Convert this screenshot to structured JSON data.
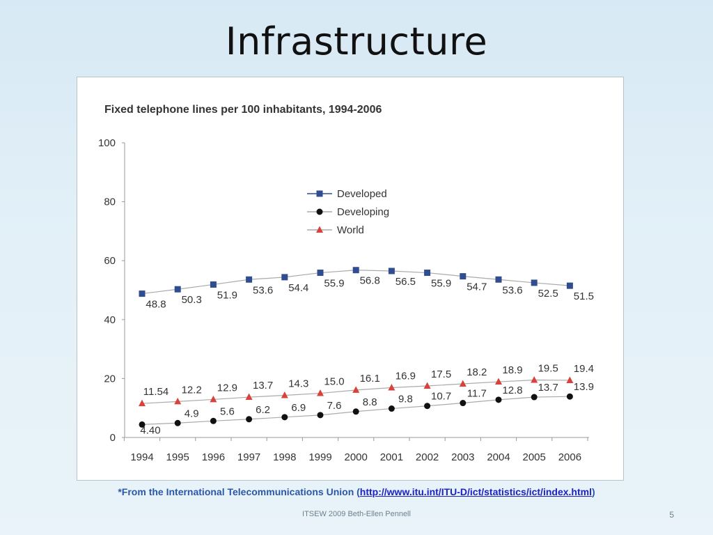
{
  "slide": {
    "title": "Infrastructure",
    "footnote_prefix": "*From the International Telecommunications Union (",
    "footnote_link": "http://www.itu.int/ITU-D/ict/statistics/ict/index.html",
    "footnote_suffix": ")",
    "footer": "ITSEW 2009 Beth-Ellen Pennell",
    "page_number": "5"
  },
  "chart_data": {
    "type": "line",
    "title": "Fixed telephone lines per 100 inhabitants, 1994-2006",
    "x": [
      "1994",
      "1995",
      "1996",
      "1997",
      "1998",
      "1999",
      "2000",
      "2001",
      "2002",
      "2003",
      "2004",
      "2005",
      "2006"
    ],
    "ylim": [
      0,
      100
    ],
    "yticks": [
      0,
      20,
      40,
      60,
      80,
      100
    ],
    "grid": false,
    "legend_position": "top-center",
    "series": [
      {
        "name": "Developed",
        "marker": "square",
        "color": "#2f4d8f",
        "values": [
          48.8,
          50.3,
          51.9,
          53.6,
          54.4,
          55.9,
          56.8,
          56.5,
          55.9,
          54.7,
          53.6,
          52.5,
          51.5
        ],
        "labels": [
          "48.8",
          "50.3",
          "51.9",
          "53.6",
          "54.4",
          "55.9",
          "56.8",
          "56.5",
          "55.9",
          "54.7",
          "53.6",
          "52.5",
          "51.5"
        ]
      },
      {
        "name": "Developing",
        "marker": "circle",
        "color": "#111111",
        "values": [
          4.4,
          4.9,
          5.6,
          6.2,
          6.9,
          7.6,
          8.8,
          9.8,
          10.7,
          11.7,
          12.8,
          13.7,
          13.9
        ],
        "labels": [
          "4.40",
          "4.9",
          "5.6",
          "6.2",
          "6.9",
          "7.6",
          "8.8",
          "9.8",
          "10.7",
          "11.7",
          "12.8",
          "13.7",
          "13.9"
        ]
      },
      {
        "name": "World",
        "marker": "triangle",
        "color": "#d9413b",
        "values": [
          11.54,
          12.2,
          12.9,
          13.7,
          14.3,
          15.0,
          16.1,
          16.9,
          17.5,
          18.2,
          18.9,
          19.5,
          19.4
        ],
        "labels": [
          "11.54",
          "12.2",
          "12.9",
          "13.7",
          "14.3",
          "15.0",
          "16.1",
          "16.9",
          "17.5",
          "18.2",
          "18.9",
          "19.5",
          "19.4"
        ]
      }
    ]
  }
}
